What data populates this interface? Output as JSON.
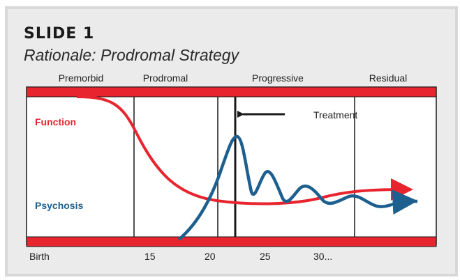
{
  "slide": {
    "number": "SLIDE 1",
    "title": "Rationale: Prodromal Strategy"
  },
  "phases": [
    "Premorbid",
    "Prodromal",
    "Progressive",
    "Residual"
  ],
  "annotation": "Treatment",
  "axis_ticks": [
    "Birth",
    "15",
    "20",
    "25",
    "30..."
  ],
  "legend": {
    "function": {
      "label": "Function",
      "color": "#e8252e"
    },
    "psychosis": {
      "label": "Psychosis",
      "color": "#1d5f8e"
    }
  },
  "colors": {
    "band": "#e8252e",
    "background": "#ebebeb",
    "lines": "#1a1a1a"
  }
}
